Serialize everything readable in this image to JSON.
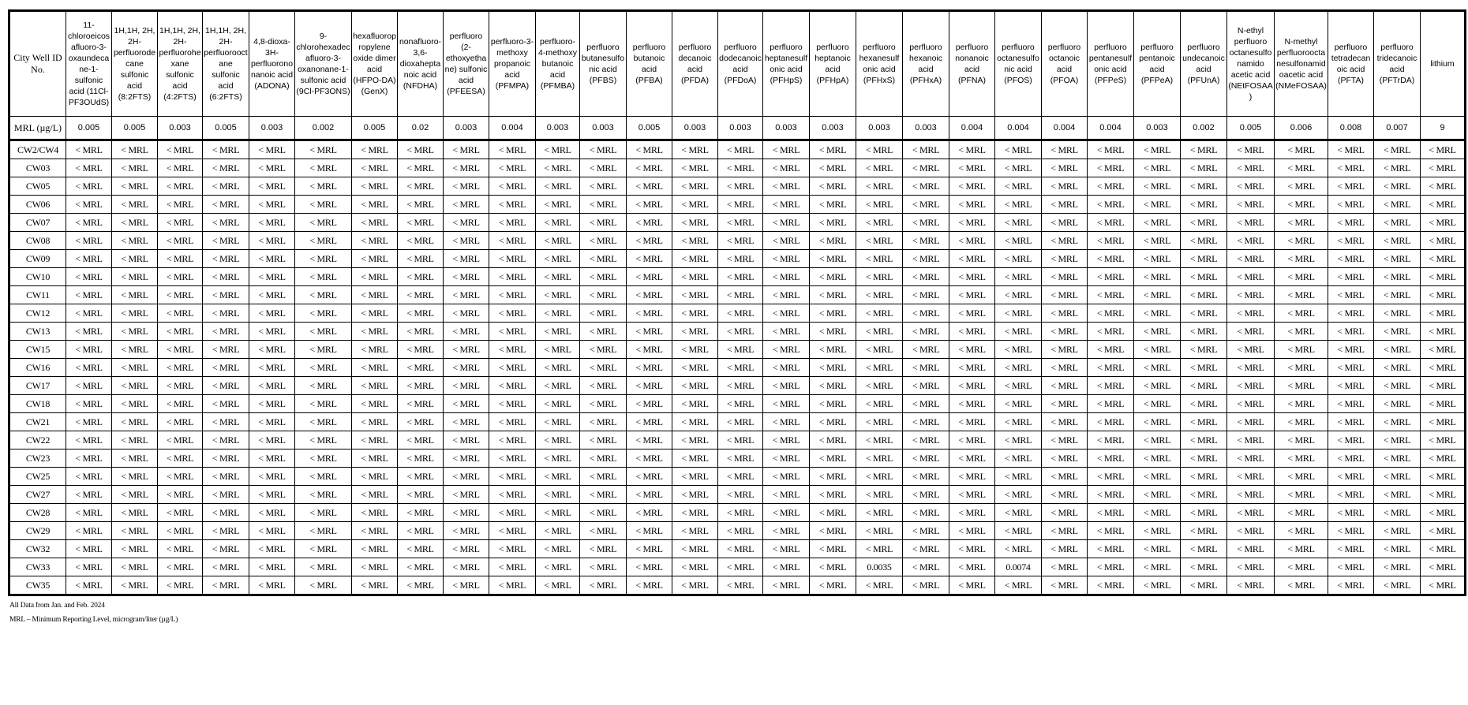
{
  "table": {
    "corner_header": "City Well ID No.",
    "mrl_label": "MRL (µg/L)",
    "columns": [
      {
        "name": "11-chloroeicosafluoro-3-oxaundecane-1-sulfonic acid (11Cl-PF3OUdS)",
        "mrl": "0.005"
      },
      {
        "name": "1H,1H, 2H, 2H-perfluorodecane sulfonic acid (8:2FTS)",
        "mrl": "0.005"
      },
      {
        "name": "1H,1H, 2H, 2H-perfluorohexane sulfonic acid (4:2FTS)",
        "mrl": "0.003"
      },
      {
        "name": "1H,1H, 2H, 2H-perfluorooctane sulfonic acid (6:2FTS)",
        "mrl": "0.005"
      },
      {
        "name": "4,8-dioxa-3H-perfluorononanoic acid (ADONA)",
        "mrl": "0.003"
      },
      {
        "name": "9-chlorohexadecafluoro-3-oxanonane-1-sulfonic acid (9Cl-PF3ONS)",
        "mrl": "0.002"
      },
      {
        "name": "hexafluoropropylene oxide dimer acid (HFPO-DA) (GenX)",
        "mrl": "0.005"
      },
      {
        "name": "nonafluoro-3,6-dioxaheptanoic acid (NFDHA)",
        "mrl": "0.02"
      },
      {
        "name": "perfluoro (2-ethoxyethane) sulfonic acid (PFEESA)",
        "mrl": "0.003"
      },
      {
        "name": "perfluoro-3-methoxy propanoic acid (PFMPA)",
        "mrl": "0.004"
      },
      {
        "name": "perfluoro-4-methoxy butanoic acid (PFMBA)",
        "mrl": "0.003"
      },
      {
        "name": "perfluoro butanesulfonic acid (PFBS)",
        "mrl": "0.003"
      },
      {
        "name": "perfluoro butanoic acid (PFBA)",
        "mrl": "0.005"
      },
      {
        "name": "perfluoro decanoic acid (PFDA)",
        "mrl": "0.003"
      },
      {
        "name": "perfluoro dodecanoic acid (PFDoA)",
        "mrl": "0.003"
      },
      {
        "name": "perfluoro heptanesulfonic acid (PFHpS)",
        "mrl": "0.003"
      },
      {
        "name": "perfluoro heptanoic acid (PFHpA)",
        "mrl": "0.003"
      },
      {
        "name": "perfluoro hexanesulfonic acid (PFHxS)",
        "mrl": "0.003"
      },
      {
        "name": "perfluoro hexanoic acid (PFHxA)",
        "mrl": "0.003"
      },
      {
        "name": "perfluoro nonanoic acid (PFNA)",
        "mrl": "0.004"
      },
      {
        "name": "perfluoro octanesulfonic acid (PFOS)",
        "mrl": "0.004"
      },
      {
        "name": "perfluoro octanoic acid (PFOA)",
        "mrl": "0.004"
      },
      {
        "name": "perfluoro pentanesulfonic acid (PFPeS)",
        "mrl": "0.004"
      },
      {
        "name": "perfluoro pentanoic acid (PFPeA)",
        "mrl": "0.003"
      },
      {
        "name": "perfluoro undecanoic acid (PFUnA)",
        "mrl": "0.002"
      },
      {
        "name": "N-ethyl perfluoro octanesulfonamido acetic acid (NEtFOSAA)",
        "mrl": "0.005"
      },
      {
        "name": "N-methyl perfluorooctanesulfonamidoacetic acid (NMeFOSAA)",
        "mrl": "0.006"
      },
      {
        "name": "perfluoro tetradecanoic acid (PFTA)",
        "mrl": "0.008"
      },
      {
        "name": "perfluoro tridecanoic acid (PFTrDA)",
        "mrl": "0.007"
      },
      {
        "name": "lithium",
        "mrl": "9"
      }
    ],
    "default_value": "< MRL",
    "rows": [
      {
        "id": "CW2/CW4"
      },
      {
        "id": "CW03"
      },
      {
        "id": "CW05"
      },
      {
        "id": "CW06"
      },
      {
        "id": "CW07"
      },
      {
        "id": "CW08"
      },
      {
        "id": "CW09"
      },
      {
        "id": "CW10"
      },
      {
        "id": "CW11"
      },
      {
        "id": "CW12"
      },
      {
        "id": "CW13"
      },
      {
        "id": "CW15"
      },
      {
        "id": "CW16"
      },
      {
        "id": "CW17"
      },
      {
        "id": "CW18"
      },
      {
        "id": "CW21"
      },
      {
        "id": "CW22"
      },
      {
        "id": "CW23"
      },
      {
        "id": "CW25"
      },
      {
        "id": "CW27"
      },
      {
        "id": "CW28"
      },
      {
        "id": "CW29"
      },
      {
        "id": "CW32"
      },
      {
        "id": "CW33",
        "values": {
          "17": "0.0035",
          "20": "0.0074"
        }
      },
      {
        "id": "CW35"
      }
    ]
  },
  "notes": {
    "line1": "All Data from Jan. and Feb. 2024",
    "line2": "MRL – Minimum Reporting Level, microgram/liter (µg/L)"
  }
}
